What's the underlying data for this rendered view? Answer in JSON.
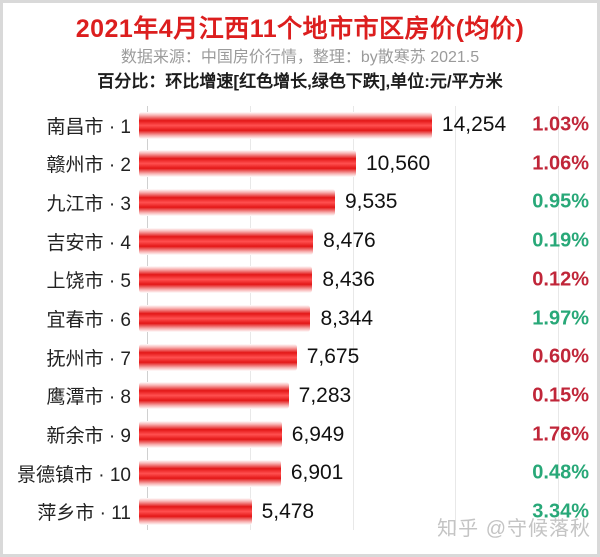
{
  "header": {
    "title": "2021年4月江西11个地市市区房价(均价)",
    "subtitle": "数据来源：中国房价行情，整理：by散寒苏  2021.5",
    "note": "百分比：环比增速[红色增长,绿色下跌],单位:元/平方米"
  },
  "watermark": "知乎 @守候落秋",
  "colors": {
    "title_red": "#dc1e1e",
    "bar_red": "#e31717",
    "increase_red": "#c02639",
    "decrease_green": "#28a878",
    "gridline": "#e8e8e8"
  },
  "chart_data": {
    "type": "bar",
    "orientation": "horizontal",
    "title": "2021年4月江西11个地市市区房价(均价)",
    "unit": "元/平方米",
    "xlim": [
      0,
      20000
    ],
    "gridline_values": [
      0,
      5000,
      10000,
      15000,
      20000
    ],
    "grid": true,
    "legend": "none",
    "categories": [
      "南昌市 · 1",
      "赣州市 · 2",
      "九江市 · 3",
      "吉安市 · 4",
      "上饶市 · 5",
      "宜春市 · 6",
      "抚州市 · 7",
      "鹰潭市 · 8",
      "新余市 · 9",
      "景德镇市 · 10",
      "萍乡市 · 11"
    ],
    "values": [
      14254,
      10560,
      9535,
      8476,
      8436,
      8344,
      7675,
      7283,
      6949,
      6901,
      5478
    ],
    "value_labels": [
      "14,254",
      "10,560",
      "9,535",
      "8,476",
      "8,436",
      "8,344",
      "7,675",
      "7,283",
      "6,949",
      "6,901",
      "5,478"
    ],
    "change_pct": [
      "1.03%",
      "1.06%",
      "0.95%",
      "0.19%",
      "0.12%",
      "1.97%",
      "0.60%",
      "0.15%",
      "1.76%",
      "0.48%",
      "3.34%"
    ],
    "change_direction": [
      "up",
      "up",
      "down",
      "down",
      "up",
      "down",
      "up",
      "up",
      "up",
      "down",
      "down"
    ]
  }
}
